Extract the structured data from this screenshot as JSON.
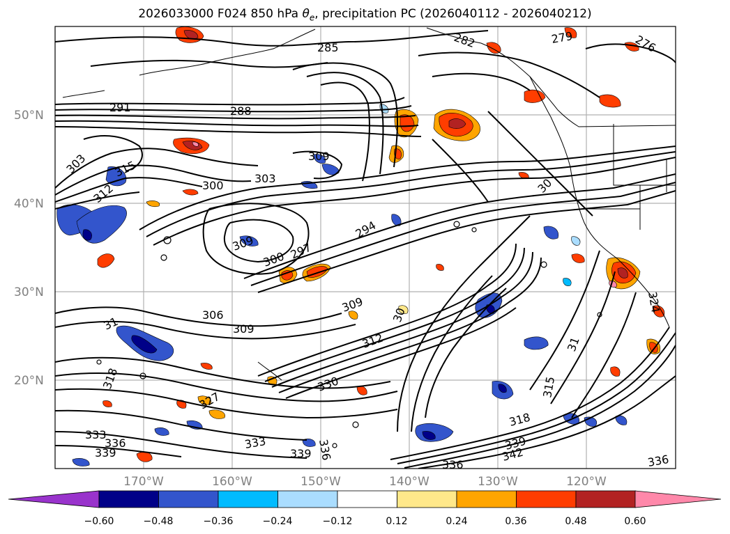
{
  "title": {
    "prefix": "2026033000 F024 850 hPa ",
    "symbol": "θ",
    "subscript": "e",
    "suffix": ", precipitation PC (2026040112 - 2026040212)"
  },
  "map": {
    "projection": "plate carree",
    "region": "North-East Pacific",
    "lon_range": [
      -180,
      -110
    ],
    "lat_range": [
      10,
      60
    ],
    "gridlines": true
  },
  "axes": {
    "lat_ticks": [
      "50°N",
      "40°N",
      "30°N",
      "20°N"
    ],
    "lon_ticks": [
      "170°W",
      "160°W",
      "150°W",
      "140°W",
      "130°W",
      "120°W"
    ]
  },
  "colorbar": {
    "extend": "both",
    "tick_labels": [
      "−0.60",
      "−0.48",
      "−0.36",
      "−0.24",
      "−0.12",
      "0.12",
      "0.24",
      "0.36",
      "0.48",
      "0.60"
    ],
    "colors": [
      "#9933cc",
      "#000088",
      "#3355cc",
      "#00bbff",
      "#aaddff",
      "#ffffff",
      "#ffe88a",
      "#ffa500",
      "#ff3d00",
      "#b22222",
      "#ff88aa"
    ]
  },
  "contour_labels": [
    {
      "id": "c1",
      "text": "285"
    },
    {
      "id": "c2",
      "text": "282"
    },
    {
      "id": "c3",
      "text": "279"
    },
    {
      "id": "c4",
      "text": "276"
    },
    {
      "id": "c5",
      "text": "291"
    },
    {
      "id": "c6",
      "text": "288"
    },
    {
      "id": "c7",
      "text": "309"
    },
    {
      "id": "c8",
      "text": "303"
    },
    {
      "id": "c9",
      "text": "300"
    },
    {
      "id": "c10",
      "text": "315"
    },
    {
      "id": "c11",
      "text": "312"
    },
    {
      "id": "c12",
      "text": "303"
    },
    {
      "id": "c13",
      "text": "309"
    },
    {
      "id": "c14",
      "text": "300"
    },
    {
      "id": "c15",
      "text": "297"
    },
    {
      "id": "c16",
      "text": "294"
    },
    {
      "id": "c17",
      "text": "306"
    },
    {
      "id": "c18",
      "text": "309"
    },
    {
      "id": "c19",
      "text": "309"
    },
    {
      "id": "c20",
      "text": "312"
    },
    {
      "id": "c21",
      "text": "318"
    },
    {
      "id": "c22",
      "text": "330"
    },
    {
      "id": "c23",
      "text": "333"
    },
    {
      "id": "c24",
      "text": "336"
    },
    {
      "id": "c25",
      "text": "339"
    },
    {
      "id": "c26",
      "text": "333"
    },
    {
      "id": "c27",
      "text": "339"
    },
    {
      "id": "c28",
      "text": "336"
    },
    {
      "id": "c29",
      "text": "318"
    },
    {
      "id": "c30",
      "text": "315"
    },
    {
      "id": "c31",
      "text": "342"
    },
    {
      "id": "c32",
      "text": "339"
    },
    {
      "id": "c33",
      "text": "336"
    },
    {
      "id": "c34",
      "text": "336"
    },
    {
      "id": "c35",
      "text": "30"
    },
    {
      "id": "c36",
      "text": "31"
    },
    {
      "id": "c37",
      "text": "30"
    },
    {
      "id": "c38",
      "text": "31"
    },
    {
      "id": "c39",
      "text": "327"
    },
    {
      "id": "c40",
      "text": "324"
    }
  ]
}
